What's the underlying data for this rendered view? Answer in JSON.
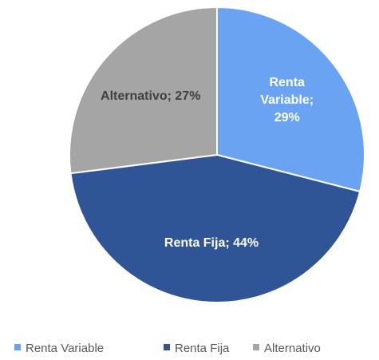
{
  "chart_data": {
    "type": "pie",
    "categories": [
      "Renta Variable",
      "Renta Fija",
      "Alternativo"
    ],
    "values": [
      29,
      44,
      27
    ],
    "value_labels": [
      "Renta Variable; 29%",
      "Renta Fija; 44%",
      "Alternativo; 27%"
    ],
    "colors": [
      "#6aa3f2",
      "#2f5597",
      "#a5a5a5"
    ],
    "legend": "bottom"
  }
}
